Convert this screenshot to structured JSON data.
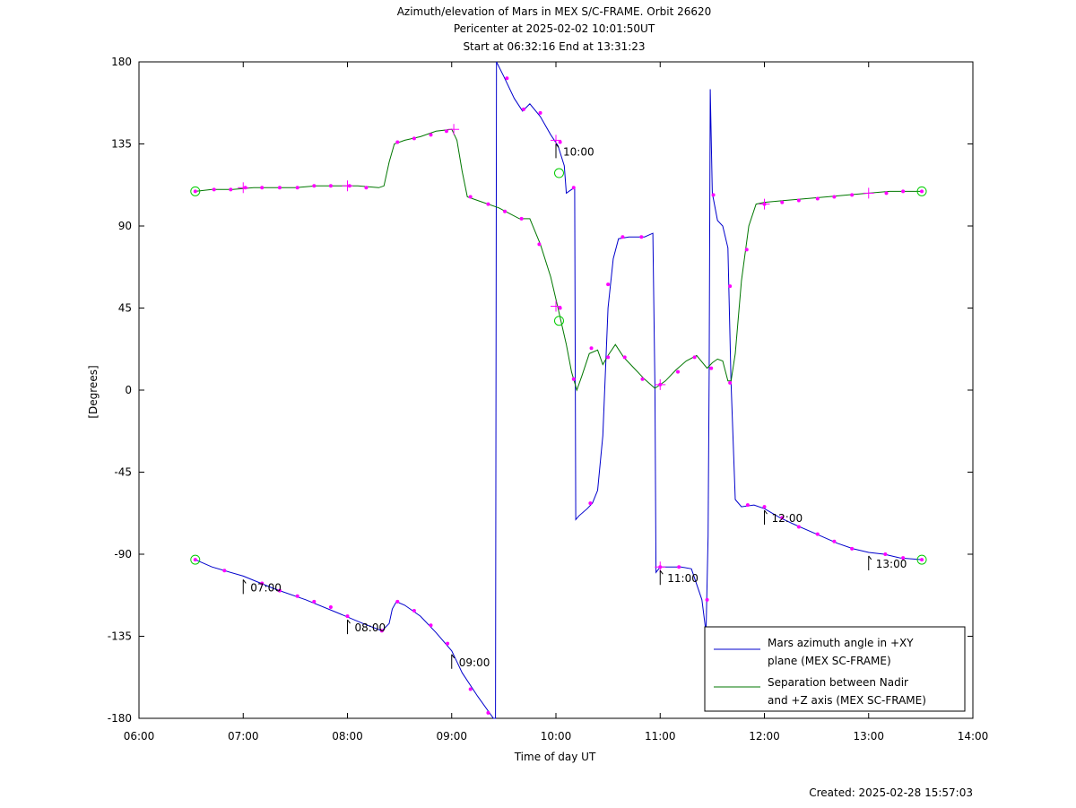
{
  "chart_data": {
    "type": "line",
    "title_lines": [
      "Azimuth/elevation of Mars in MEX S/C-FRAME.  Orbit 26620",
      "Pericenter at 2025-02-02 10:01:50UT",
      "Start at 06:32:16 End at 13:31:23"
    ],
    "xlabel": "Time of day UT",
    "ylabel": "[Degrees]",
    "xlim": [
      6,
      14
    ],
    "ylim": [
      -180,
      180
    ],
    "xticks": [
      {
        "v": 6,
        "label": "06:00"
      },
      {
        "v": 7,
        "label": "07:00"
      },
      {
        "v": 8,
        "label": "08:00"
      },
      {
        "v": 9,
        "label": "09:00"
      },
      {
        "v": 10,
        "label": "10:00"
      },
      {
        "v": 11,
        "label": "11:00"
      },
      {
        "v": 12,
        "label": "12:00"
      },
      {
        "v": 13,
        "label": "13:00"
      },
      {
        "v": 14,
        "label": "14:00"
      }
    ],
    "yticks": [
      {
        "v": 180,
        "label": "180"
      },
      {
        "v": 135,
        "label": "135"
      },
      {
        "v": 90,
        "label": "90"
      },
      {
        "v": 45,
        "label": "45"
      },
      {
        "v": 0,
        "label": "0"
      },
      {
        "v": -45,
        "label": "-45"
      },
      {
        "v": -90,
        "label": "-90"
      },
      {
        "v": -135,
        "label": "-135"
      },
      {
        "v": -180,
        "label": "-180"
      }
    ],
    "grid": false,
    "legend_position": "bottom-right",
    "series": [
      {
        "name": "Mars azimuth angle in +XY plane (MEX SC-FRAME)",
        "legend_lines": [
          "Mars azimuth angle in +XY",
          "plane (MEX SC-FRAME)"
        ],
        "color": "#0000cc",
        "points": [
          [
            6.54,
            -93
          ],
          [
            6.7,
            -97
          ],
          [
            7.0,
            -102
          ],
          [
            7.3,
            -109
          ],
          [
            7.6,
            -115
          ],
          [
            7.9,
            -122
          ],
          [
            8.15,
            -128
          ],
          [
            8.33,
            -132
          ],
          [
            8.4,
            -128
          ],
          [
            8.43,
            -120
          ],
          [
            8.47,
            -116
          ],
          [
            8.55,
            -118
          ],
          [
            8.7,
            -124
          ],
          [
            8.85,
            -133
          ],
          [
            9.0,
            -143
          ],
          [
            9.1,
            -155
          ],
          [
            9.25,
            -168
          ],
          [
            9.4,
            -180
          ],
          [
            9.42,
            -180
          ],
          [
            9.43,
            180
          ],
          [
            9.5,
            172
          ],
          [
            9.6,
            160
          ],
          [
            9.68,
            153
          ],
          [
            9.75,
            157
          ],
          [
            9.85,
            150
          ],
          [
            9.95,
            140
          ],
          [
            10.02,
            134
          ],
          [
            10.08,
            123
          ],
          [
            10.1,
            108
          ],
          [
            10.15,
            110
          ],
          [
            10.18,
            111
          ],
          [
            10.19,
            -71
          ],
          [
            10.22,
            -69
          ],
          [
            10.3,
            -65
          ],
          [
            10.35,
            -62
          ],
          [
            10.4,
            -55
          ],
          [
            10.45,
            -25
          ],
          [
            10.5,
            45
          ],
          [
            10.55,
            72
          ],
          [
            10.6,
            83
          ],
          [
            10.7,
            84
          ],
          [
            10.85,
            84
          ],
          [
            10.93,
            86
          ],
          [
            10.95,
            2
          ],
          [
            10.96,
            -100
          ],
          [
            11.0,
            -97
          ],
          [
            11.1,
            -97
          ],
          [
            11.2,
            -97
          ],
          [
            11.3,
            -98
          ],
          [
            11.4,
            -115
          ],
          [
            11.44,
            -133
          ],
          [
            11.46,
            -80
          ],
          [
            11.47,
            10
          ],
          [
            11.48,
            165
          ],
          [
            11.5,
            108
          ],
          [
            11.55,
            93
          ],
          [
            11.6,
            90
          ],
          [
            11.65,
            78
          ],
          [
            11.68,
            4
          ],
          [
            11.72,
            -60
          ],
          [
            11.78,
            -64
          ],
          [
            11.9,
            -63
          ],
          [
            12.0,
            -65
          ],
          [
            12.15,
            -70
          ],
          [
            12.3,
            -74
          ],
          [
            12.5,
            -79
          ],
          [
            12.7,
            -84
          ],
          [
            12.85,
            -87
          ],
          [
            13.0,
            -89
          ],
          [
            13.15,
            -90
          ],
          [
            13.3,
            -92
          ],
          [
            13.51,
            -93
          ]
        ]
      },
      {
        "name": "Separation between Nadir and +Z axis (MEX SC-FRAME)",
        "legend_lines": [
          "Separation between Nadir",
          "and +Z axis (MEX SC-FRAME)"
        ],
        "color": "#007700",
        "points": [
          [
            6.54,
            109
          ],
          [
            6.7,
            110
          ],
          [
            6.9,
            110
          ],
          [
            7.1,
            111
          ],
          [
            7.3,
            111
          ],
          [
            7.5,
            111
          ],
          [
            7.7,
            112
          ],
          [
            7.9,
            112
          ],
          [
            8.1,
            112
          ],
          [
            8.3,
            111
          ],
          [
            8.35,
            112
          ],
          [
            8.4,
            125
          ],
          [
            8.45,
            135
          ],
          [
            8.55,
            137
          ],
          [
            8.7,
            139
          ],
          [
            8.85,
            142
          ],
          [
            9.0,
            143
          ],
          [
            9.05,
            137
          ],
          [
            9.1,
            120
          ],
          [
            9.15,
            106
          ],
          [
            9.3,
            103
          ],
          [
            9.45,
            100
          ],
          [
            9.55,
            97
          ],
          [
            9.65,
            94
          ],
          [
            9.75,
            94
          ],
          [
            9.85,
            80
          ],
          [
            9.95,
            62
          ],
          [
            10.02,
            45
          ],
          [
            10.1,
            25
          ],
          [
            10.15,
            10
          ],
          [
            10.2,
            0
          ],
          [
            10.25,
            8
          ],
          [
            10.32,
            20
          ],
          [
            10.4,
            22
          ],
          [
            10.45,
            14
          ],
          [
            10.5,
            19
          ],
          [
            10.57,
            25
          ],
          [
            10.65,
            18
          ],
          [
            10.75,
            12
          ],
          [
            10.85,
            6
          ],
          [
            10.95,
            1
          ],
          [
            11.05,
            5
          ],
          [
            11.15,
            11
          ],
          [
            11.25,
            16
          ],
          [
            11.35,
            19
          ],
          [
            11.45,
            12
          ],
          [
            11.5,
            15
          ],
          [
            11.55,
            17
          ],
          [
            11.6,
            16
          ],
          [
            11.65,
            5
          ],
          [
            11.68,
            5
          ],
          [
            11.72,
            20
          ],
          [
            11.78,
            60
          ],
          [
            11.85,
            90
          ],
          [
            11.92,
            102
          ],
          [
            12.0,
            103
          ],
          [
            12.2,
            104
          ],
          [
            12.4,
            105
          ],
          [
            12.6,
            106
          ],
          [
            12.8,
            107
          ],
          [
            13.0,
            108
          ],
          [
            13.2,
            109
          ],
          [
            13.4,
            109
          ],
          [
            13.51,
            109
          ]
        ]
      }
    ],
    "marker_dots": [
      [
        6.54,
        -93
      ],
      [
        6.82,
        -99
      ],
      [
        7.18,
        -106
      ],
      [
        7.35,
        -110
      ],
      [
        7.52,
        -113
      ],
      [
        7.68,
        -116
      ],
      [
        7.84,
        -119
      ],
      [
        8.0,
        -124
      ],
      [
        8.33,
        -132
      ],
      [
        8.48,
        -116
      ],
      [
        8.64,
        -121
      ],
      [
        8.8,
        -129
      ],
      [
        8.96,
        -139
      ],
      [
        9.18,
        -164
      ],
      [
        9.35,
        -177
      ],
      [
        9.53,
        171
      ],
      [
        9.69,
        154
      ],
      [
        9.85,
        152
      ],
      [
        10.04,
        136
      ],
      [
        10.17,
        111
      ],
      [
        10.33,
        -62
      ],
      [
        10.5,
        58
      ],
      [
        10.64,
        84
      ],
      [
        10.82,
        84
      ],
      [
        11.0,
        -97
      ],
      [
        11.18,
        -97
      ],
      [
        11.45,
        -115
      ],
      [
        11.51,
        107
      ],
      [
        11.67,
        57
      ],
      [
        11.84,
        -63
      ],
      [
        12.0,
        -64
      ],
      [
        12.17,
        -70
      ],
      [
        12.33,
        -75
      ],
      [
        12.51,
        -79
      ],
      [
        12.67,
        -83
      ],
      [
        12.84,
        -87
      ],
      [
        13.16,
        -90
      ],
      [
        13.33,
        -92
      ],
      [
        13.51,
        -93
      ],
      [
        6.54,
        109
      ],
      [
        6.72,
        110
      ],
      [
        6.88,
        110
      ],
      [
        7.02,
        111
      ],
      [
        7.18,
        111
      ],
      [
        7.35,
        111
      ],
      [
        7.52,
        111
      ],
      [
        7.68,
        112
      ],
      [
        7.84,
        112
      ],
      [
        8.02,
        112
      ],
      [
        8.18,
        111
      ],
      [
        8.48,
        136
      ],
      [
        8.64,
        138
      ],
      [
        8.8,
        140
      ],
      [
        8.95,
        142
      ],
      [
        9.18,
        106
      ],
      [
        9.35,
        102
      ],
      [
        9.51,
        98
      ],
      [
        9.67,
        94
      ],
      [
        9.84,
        80
      ],
      [
        10.04,
        45
      ],
      [
        10.17,
        6
      ],
      [
        10.34,
        23
      ],
      [
        10.5,
        18
      ],
      [
        10.66,
        18
      ],
      [
        10.83,
        6
      ],
      [
        11.0,
        3
      ],
      [
        11.17,
        10
      ],
      [
        11.33,
        18
      ],
      [
        11.49,
        12
      ],
      [
        11.67,
        4
      ],
      [
        11.83,
        77
      ],
      [
        12.0,
        102
      ],
      [
        12.17,
        103
      ],
      [
        12.33,
        104
      ],
      [
        12.51,
        105
      ],
      [
        12.67,
        106
      ],
      [
        12.84,
        107
      ],
      [
        13.17,
        108
      ],
      [
        13.33,
        109
      ],
      [
        13.51,
        109
      ]
    ],
    "hour_markers": [
      {
        "x": 7.0,
        "y": -102,
        "label": "07:00",
        "label_above": false
      },
      {
        "x": 8.0,
        "y": -124,
        "label": "08:00",
        "label_above": false
      },
      {
        "x": 9.0,
        "y": -143,
        "label": "09:00",
        "label_above": false
      },
      {
        "x": 10.0,
        "y": 137,
        "label": "10:00",
        "label_above": false
      },
      {
        "x": 11.0,
        "y": -97,
        "label": "11:00",
        "label_above": false
      },
      {
        "x": 12.0,
        "y": -64,
        "label": "12:00",
        "label_above": false
      },
      {
        "x": 13.0,
        "y": -89,
        "label": "13:00",
        "label_above": false
      }
    ],
    "cross_markers": [
      [
        7.0,
        111
      ],
      [
        8.0,
        112
      ],
      [
        9.02,
        143
      ],
      [
        10.0,
        46
      ],
      [
        11.0,
        3
      ],
      [
        12.0,
        102
      ],
      [
        13.0,
        108
      ],
      [
        10.0,
        137
      ],
      [
        11.0,
        -97
      ]
    ],
    "circle_markers": [
      [
        6.54,
        109
      ],
      [
        6.54,
        -93
      ],
      [
        13.51,
        109
      ],
      [
        13.51,
        -93
      ],
      [
        10.03,
        119
      ],
      [
        10.03,
        38
      ]
    ],
    "marker_color": "#ff00ff",
    "circle_color": "#00cc00"
  },
  "footer": {
    "created": "Created: 2025-02-28 15:57:03"
  }
}
